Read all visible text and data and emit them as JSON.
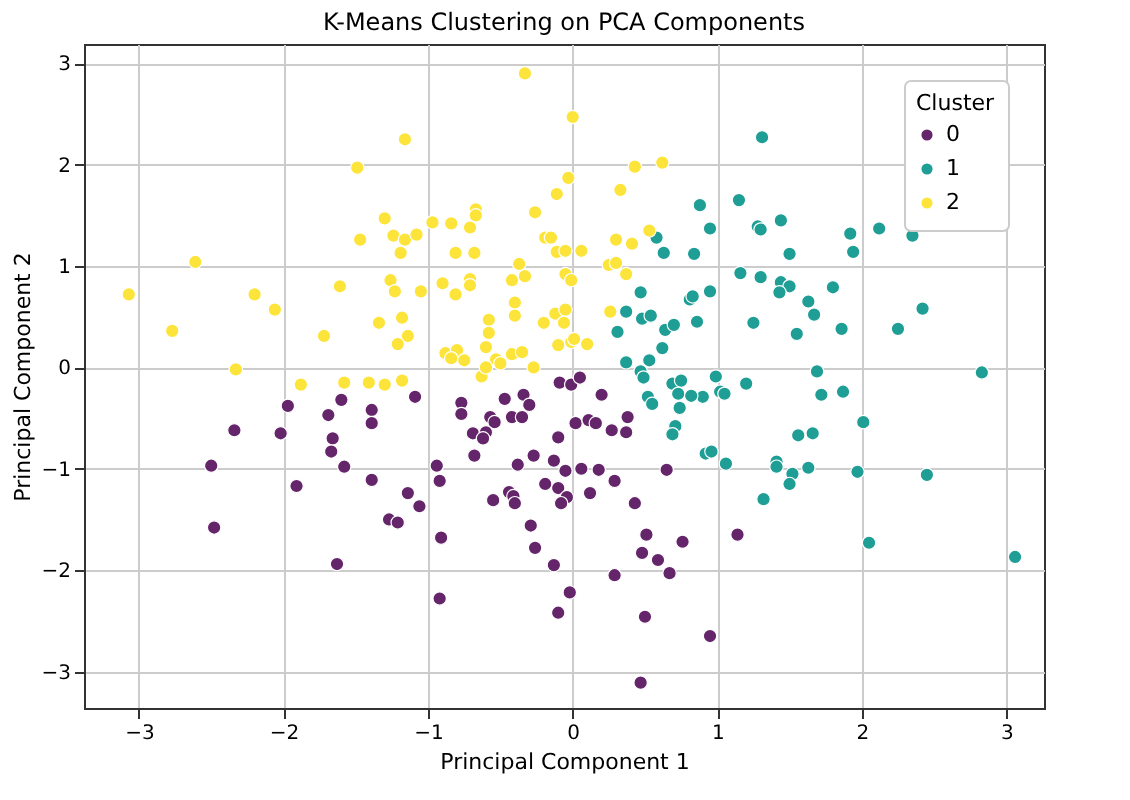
{
  "chart_data": {
    "type": "scatter",
    "title": "K-Means Clustering on PCA Components",
    "xlabel": "Principal Component 1",
    "ylabel": "Principal Component 2",
    "legend_title": "Cluster",
    "xlim": [
      -3.38,
      3.26
    ],
    "ylim": [
      -3.36,
      3.19
    ],
    "xticks": [
      -3,
      -2,
      -1,
      0,
      1,
      2,
      3
    ],
    "yticks": [
      -3,
      -2,
      -1,
      0,
      1,
      2,
      3
    ],
    "grid": true,
    "legend": "top right",
    "marker": "circle",
    "series": [
      {
        "name": "0",
        "color": "#65256b",
        "x": [
          -1.09,
          -1.39,
          -1.39,
          -0.77,
          -0.77,
          -0.47,
          -0.34,
          -0.3,
          -0.57,
          -0.54,
          -0.42,
          -0.35,
          -0.69,
          -0.6,
          -0.62,
          -0.68,
          -0.09,
          -0.01,
          0.05,
          0.2,
          0.02,
          0.11,
          0.16,
          0.27,
          0.37,
          0.38,
          -0.1,
          -0.94,
          -0.92,
          -1.39,
          -0.38,
          -0.27,
          -0.13,
          -0.05,
          0.06,
          0.18,
          0.65,
          -0.19,
          -0.1,
          -0.04,
          -0.08,
          -0.44,
          -0.41,
          -0.4,
          -0.55,
          0.12,
          0.29,
          0.43,
          -1.14,
          -1.06,
          -1.27,
          -1.21,
          -0.29,
          -0.91,
          -0.26,
          -0.13,
          0.51,
          0.76,
          0.48,
          0.59,
          0.67,
          0.29,
          -0.02,
          -0.1,
          -0.92,
          0.5,
          0.47,
          1.14,
          0.95,
          -2.34,
          -1.97,
          -2.02,
          -1.6,
          -1.69,
          -1.66,
          -1.67,
          -1.58,
          -2.5,
          -2.48,
          -1.91,
          -1.63
        ],
        "values": [
          -0.29,
          -0.42,
          -0.55,
          -0.35,
          -0.46,
          -0.31,
          -0.27,
          -0.37,
          -0.49,
          -0.54,
          -0.49,
          -0.49,
          -0.65,
          -0.64,
          -0.7,
          -0.87,
          -0.15,
          -0.17,
          -0.1,
          -0.27,
          -0.55,
          -0.52,
          -0.55,
          -0.62,
          -0.64,
          -0.49,
          -0.69,
          -0.97,
          -1.12,
          -1.11,
          -0.96,
          -0.87,
          -0.92,
          -1.02,
          -1.0,
          -1.01,
          -1.01,
          -1.15,
          -1.19,
          -1.28,
          -1.34,
          -1.23,
          -1.27,
          -1.34,
          -1.31,
          -1.24,
          -1.12,
          -1.34,
          -1.24,
          -1.37,
          -1.5,
          -1.53,
          -1.56,
          -1.68,
          -1.78,
          -1.95,
          -1.65,
          -1.72,
          -1.83,
          -1.9,
          -2.03,
          -2.05,
          -2.22,
          -2.42,
          -2.28,
          -2.46,
          -3.11,
          -1.65,
          -2.65,
          -0.62,
          -0.38,
          -0.65,
          -0.32,
          -0.47,
          -0.7,
          -0.83,
          -0.98,
          -0.97,
          -1.58,
          -1.17,
          -1.94
        ]
      },
      {
        "name": "1",
        "color": "#1f9e96",
        "x": [
          0.88,
          0.95,
          0.58,
          0.63,
          0.84,
          0.47,
          0.37,
          0.31,
          0.48,
          0.54,
          0.64,
          0.7,
          0.81,
          0.83,
          0.95,
          0.86,
          0.62,
          0.53,
          0.37,
          0.47,
          0.69,
          0.75,
          1.31,
          1.15,
          1.44,
          1.28,
          1.3,
          1.92,
          1.94,
          2.12,
          2.35,
          1.5,
          1.16,
          1.3,
          1.44,
          1.5,
          1.43,
          1.8,
          1.63,
          1.67,
          1.25,
          1.55,
          1.86,
          2.25,
          2.42,
          2.83,
          1.69,
          0.99,
          1.2,
          0.9,
          1.02,
          1.05,
          1.72,
          1.87,
          2.01,
          1.56,
          1.66,
          0.92,
          0.96,
          1.06,
          1.41,
          1.41,
          1.52,
          1.63,
          1.5,
          1.97,
          2.45,
          1.32,
          2.05,
          3.06,
          0.49,
          0.52,
          0.55,
          0.73,
          0.82,
          0.74,
          0.71,
          0.69
        ],
        "values": [
          1.6,
          1.37,
          1.28,
          1.13,
          1.12,
          0.74,
          0.55,
          0.35,
          0.48,
          0.51,
          0.37,
          0.42,
          0.67,
          0.7,
          0.75,
          0.45,
          0.19,
          0.07,
          0.05,
          -0.04,
          -0.16,
          -0.13,
          2.27,
          1.65,
          1.45,
          1.39,
          1.36,
          1.32,
          1.14,
          1.37,
          1.3,
          1.12,
          0.93,
          0.89,
          0.84,
          0.8,
          0.74,
          0.79,
          0.65,
          0.52,
          0.44,
          0.33,
          0.38,
          0.38,
          0.58,
          -0.05,
          -0.04,
          -0.09,
          -0.16,
          -0.29,
          -0.24,
          -0.26,
          -0.27,
          -0.24,
          -0.54,
          -0.67,
          -0.65,
          -0.85,
          -0.83,
          -0.95,
          -0.93,
          -0.98,
          -1.05,
          -0.99,
          -1.15,
          -1.03,
          -1.06,
          -1.3,
          -1.73,
          -1.87,
          -0.1,
          -0.29,
          -0.36,
          -0.26,
          -0.28,
          -0.4,
          -0.58,
          -0.66
        ]
      },
      {
        "name": "2",
        "color": "#fde43a",
        "x": [
          -3.07,
          -2.77,
          -2.61,
          -2.33,
          -2.2,
          -2.06,
          -1.72,
          -1.61,
          -1.49,
          -1.47,
          -1.34,
          -1.3,
          -1.88,
          -1.58,
          -1.41,
          -1.3,
          -0.33,
          0.0,
          -1.16,
          0.43,
          0.62,
          -0.03,
          -0.11,
          0.33,
          -0.26,
          -0.67,
          -0.67,
          -0.97,
          -0.84,
          -0.71,
          -1.24,
          -1.16,
          -1.08,
          -1.19,
          -0.81,
          -0.68,
          -0.19,
          -0.15,
          -0.11,
          -0.05,
          0.06,
          0.3,
          0.41,
          0.53,
          -0.37,
          -0.33,
          0.25,
          0.3,
          0.37,
          -0.05,
          -0.01,
          -1.26,
          -1.23,
          -1.05,
          -0.9,
          -0.81,
          -0.71,
          -0.71,
          -0.42,
          -0.4,
          -0.4,
          -0.2,
          -0.12,
          -0.05,
          -0.06,
          -0.58,
          -0.58,
          -1.18,
          -1.14,
          -1.21,
          0.26,
          -0.1,
          -0.01,
          0.01,
          0.1,
          -0.6,
          -0.88,
          -0.8,
          -0.84,
          -0.75,
          -0.53,
          -0.5,
          -0.42,
          -0.35,
          -0.27,
          -0.63,
          -0.6,
          -1.18
        ],
        "values": [
          0.72,
          0.36,
          1.04,
          -0.02,
          0.72,
          0.57,
          0.31,
          0.8,
          1.97,
          1.26,
          0.44,
          1.47,
          -0.17,
          -0.15,
          -0.15,
          -0.17,
          2.9,
          2.47,
          2.25,
          1.98,
          2.02,
          1.87,
          1.71,
          1.75,
          1.53,
          1.56,
          1.5,
          1.43,
          1.42,
          1.38,
          1.3,
          1.26,
          1.31,
          1.13,
          1.13,
          1.13,
          1.28,
          1.28,
          1.14,
          1.15,
          1.15,
          1.26,
          1.22,
          1.35,
          1.02,
          0.9,
          1.01,
          1.03,
          0.92,
          0.92,
          0.86,
          0.86,
          0.75,
          0.75,
          0.83,
          0.72,
          0.87,
          0.81,
          0.86,
          0.64,
          0.51,
          0.44,
          0.53,
          0.57,
          0.44,
          0.47,
          0.34,
          0.49,
          0.31,
          0.23,
          0.55,
          0.22,
          0.25,
          0.28,
          0.23,
          0.2,
          0.14,
          0.17,
          0.09,
          0.07,
          0.08,
          0.04,
          0.13,
          0.15,
          0.0,
          -0.09,
          0.0,
          -0.13
        ]
      }
    ]
  }
}
